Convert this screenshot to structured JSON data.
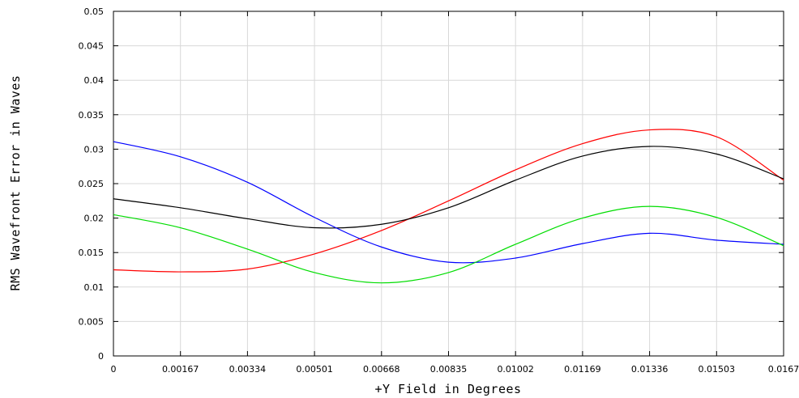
{
  "chart_data": {
    "type": "line",
    "title": "",
    "xlabel": "+Y Field in Degrees",
    "ylabel": "RMS Wavefront Error in Waves",
    "xlim": [
      0,
      0.0167
    ],
    "ylim": [
      0,
      0.05
    ],
    "x_ticks": [
      "0",
      "0.00167",
      "0.00334",
      "0.00501",
      "0.00668",
      "0.00835",
      "0.01002",
      "0.01169",
      "0.01336",
      "0.01503",
      "0.0167"
    ],
    "y_ticks": [
      "0",
      "0.005",
      "0.01",
      "0.015",
      "0.02",
      "0.025",
      "0.03",
      "0.035",
      "0.04",
      "0.045",
      "0.05"
    ],
    "grid": true,
    "x": [
      0,
      0.00167,
      0.00334,
      0.00501,
      0.00668,
      0.00835,
      0.01002,
      0.01169,
      0.01336,
      0.01503,
      0.0167
    ],
    "series": [
      {
        "color": "#ff0000",
        "values": [
          0.0125,
          0.0122,
          0.0126,
          0.0148,
          0.0182,
          0.0225,
          0.027,
          0.0308,
          0.0328,
          0.0318,
          0.0255
        ]
      },
      {
        "color": "#000000",
        "values": [
          0.0228,
          0.0215,
          0.0199,
          0.0186,
          0.0191,
          0.0215,
          0.0255,
          0.029,
          0.0304,
          0.0293,
          0.0257
        ]
      },
      {
        "color": "#0000ff",
        "values": [
          0.0311,
          0.0289,
          0.0252,
          0.0201,
          0.0158,
          0.0136,
          0.0142,
          0.0163,
          0.0178,
          0.0168,
          0.0162
        ]
      },
      {
        "color": "#00dd00",
        "values": [
          0.0205,
          0.0186,
          0.0155,
          0.0121,
          0.0106,
          0.0121,
          0.0162,
          0.02,
          0.0217,
          0.0201,
          0.016
        ]
      }
    ]
  }
}
